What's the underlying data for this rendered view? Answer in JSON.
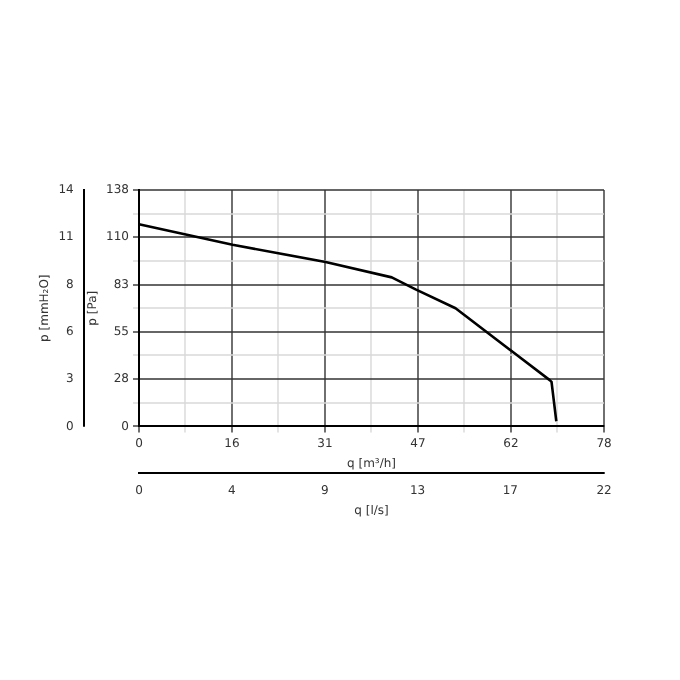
{
  "chart_data": {
    "type": "line",
    "xlabel": "q [m³/h]",
    "ylabel": "p [Pa]",
    "y2label": "p [mmH₂O]",
    "x2label": "q [l/s]",
    "x": [
      0,
      15.7,
      31.3,
      42.4,
      46.4,
      53.1,
      62.5,
      68.9,
      69.2,
      70
    ],
    "series": [
      {
        "color": "#000000",
        "values": [
          118,
          106,
          96,
          87,
          80,
          69,
          44,
          27,
          26,
          3
        ]
      }
    ],
    "xlim": [
      0,
      78
    ],
    "xticks": [
      0,
      {
        "value": 7.8,
        "label": null
      },
      {
        "value": 15.6,
        "label": "16"
      },
      {
        "value": 23.4,
        "label": null
      },
      {
        "value": 31.2,
        "label": "31"
      },
      {
        "value": 39,
        "label": null
      },
      {
        "value": 46.8,
        "label": "47"
      },
      {
        "value": 54.6,
        "label": null
      },
      {
        "value": 62.4,
        "label": "62"
      },
      {
        "value": 70.2,
        "label": null
      },
      78
    ],
    "ylim": [
      0,
      138
    ],
    "yticks": [
      0,
      {
        "value": 13.8,
        "label": null
      },
      {
        "value": 27.6,
        "label": "28"
      },
      {
        "value": 41.4,
        "label": null
      },
      {
        "value": 55.2,
        "label": "55"
      },
      {
        "value": 69,
        "label": null
      },
      {
        "value": 82.8,
        "label": "83"
      },
      {
        "value": 96.6,
        "label": null
      },
      {
        "value": 110.4,
        "label": "110"
      },
      {
        "value": 124.2,
        "label": null
      },
      138
    ],
    "y2lim": [
      0,
      14
    ],
    "y2ticks": [
      0,
      {
        "value": 2.8,
        "label": "3"
      },
      {
        "value": 5.6,
        "label": "6"
      },
      {
        "value": 8.4,
        "label": "8"
      },
      {
        "value": 11.2,
        "label": "11"
      },
      14
    ],
    "x2lim": [
      0,
      21.7
    ],
    "x2ticks": [
      0,
      {
        "value": 4.33,
        "label": "4"
      },
      {
        "value": 8.67,
        "label": "9"
      },
      13,
      {
        "value": 17.33,
        "label": "17"
      },
      {
        "value": 21.7,
        "label": "22"
      }
    ],
    "grid": true,
    "marker": "none",
    "line_style": "solid",
    "legend": false
  }
}
